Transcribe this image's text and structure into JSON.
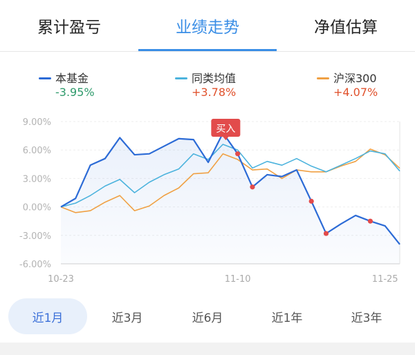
{
  "tabs": [
    {
      "label": "累计盈亏"
    },
    {
      "label": "业绩走势"
    },
    {
      "label": "净值估算"
    }
  ],
  "active_tab": 1,
  "legend": [
    {
      "name": "本基金",
      "value": "-3.95%",
      "color": "#2c6bd6",
      "value_color": "#2e9a6b"
    },
    {
      "name": "同类均值",
      "value": "+3.78%",
      "color": "#4cb3dd",
      "value_color": "#e0522d"
    },
    {
      "name": "沪深300",
      "value": "+4.07%",
      "color": "#f0a043",
      "value_color": "#e0522d"
    }
  ],
  "buy_marker": {
    "label": "买入"
  },
  "periods": [
    {
      "label": "近1月",
      "active": true
    },
    {
      "label": "近3月",
      "active": false
    },
    {
      "label": "近6月",
      "active": false
    },
    {
      "label": "近1年",
      "active": false
    },
    {
      "label": "近3年",
      "active": false
    }
  ],
  "chart_data": {
    "type": "line",
    "ylim": [
      -6,
      9
    ],
    "yticks": [
      9,
      6,
      3,
      0,
      -3,
      -6
    ],
    "ytick_labels": [
      "9.00%",
      "6.00%",
      "3.00%",
      "0.00%",
      "-3.00%",
      "-6.00%"
    ],
    "xtick_labels": [
      "10-23",
      "11-10",
      "11-25"
    ],
    "xtick_index": [
      0,
      12,
      22
    ],
    "series": [
      {
        "name": "本基金",
        "color": "#2c6bd6",
        "values": [
          0.0,
          0.9,
          4.4,
          5.1,
          7.3,
          5.5,
          5.6,
          6.4,
          7.2,
          7.1,
          4.7,
          7.8,
          5.6,
          2.1,
          3.4,
          3.2,
          3.9,
          0.6,
          -2.8,
          -1.8,
          -0.9,
          -1.5,
          -2.0,
          -3.95
        ]
      },
      {
        "name": "同类均值",
        "color": "#4cb3dd",
        "values": [
          0.0,
          0.4,
          1.2,
          2.2,
          2.9,
          1.5,
          2.6,
          3.4,
          4.0,
          5.6,
          5.0,
          6.6,
          6.0,
          4.1,
          4.8,
          4.4,
          5.1,
          4.3,
          3.7,
          4.4,
          5.1,
          5.9,
          5.6,
          3.78
        ]
      },
      {
        "name": "沪深300",
        "color": "#f0a043",
        "values": [
          0.0,
          -0.6,
          -0.4,
          0.5,
          1.2,
          -0.4,
          0.1,
          1.2,
          2.0,
          3.5,
          3.6,
          5.6,
          5.0,
          3.9,
          4.0,
          3.0,
          3.9,
          3.7,
          3.7,
          4.3,
          4.8,
          6.1,
          5.5,
          4.07
        ]
      }
    ],
    "marker_points": [
      12,
      13,
      17,
      18,
      21
    ],
    "buy_index": 12
  }
}
